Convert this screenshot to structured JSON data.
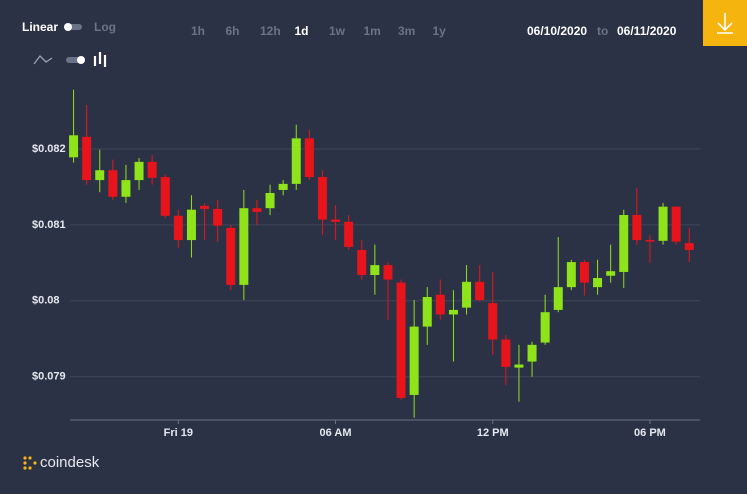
{
  "controls": {
    "scales": [
      "Linear",
      "Log"
    ],
    "active_scale": "Linear",
    "ranges": [
      "1h",
      "6h",
      "12h",
      "1d",
      "1w",
      "1m",
      "3m",
      "1y"
    ],
    "active_range": "1d",
    "date_from": "06/10/2020",
    "date_sep": "to",
    "date_to": "06/11/2020"
  },
  "brand": "coindesk",
  "chart_data": {
    "type": "candlestick",
    "categories": [
      null,
      null,
      null,
      null,
      null,
      null,
      null,
      null,
      "Fri 19",
      null,
      null,
      null,
      null,
      null,
      null,
      null,
      null,
      null,
      null,
      null,
      "06 AM",
      null,
      null,
      null,
      null,
      null,
      null,
      null,
      null,
      null,
      null,
      null,
      "12 PM",
      null,
      null,
      null,
      null,
      null,
      null,
      null,
      null,
      null,
      null,
      null,
      "06 PM",
      null,
      null,
      null
    ],
    "open": [
      0.08189,
      0.08216,
      0.08159,
      0.08172,
      0.08137,
      0.08159,
      0.08183,
      0.08163,
      0.08112,
      0.0808,
      0.08125,
      0.08121,
      0.08096,
      0.08021,
      0.08122,
      0.08122,
      0.08146,
      0.08154,
      0.08214,
      0.08163,
      0.08107,
      0.08104,
      0.08067,
      0.08034,
      0.08047,
      0.08024,
      0.07876,
      0.07966,
      0.08008,
      0.07982,
      0.07991,
      0.08025,
      0.07997,
      0.07949,
      0.07912,
      0.0792,
      0.07945,
      0.07988,
      0.08018,
      0.08051,
      0.08018,
      0.08033,
      0.08038,
      0.08113,
      0.0808,
      0.08079,
      0.08124,
      0.08076
    ],
    "high": [
      0.08278,
      0.08258,
      0.08199,
      0.08186,
      0.08179,
      0.08188,
      0.08192,
      0.08166,
      0.0812,
      0.08139,
      0.08128,
      0.08133,
      0.081,
      0.08146,
      0.08133,
      0.08153,
      0.08159,
      0.08232,
      0.08225,
      0.08172,
      0.08126,
      0.08113,
      0.0808,
      0.08074,
      0.08051,
      0.08028,
      0.08001,
      0.08018,
      0.08028,
      0.08014,
      0.08047,
      0.08047,
      0.08038,
      0.07955,
      0.07942,
      0.07946,
      0.08008,
      0.08084,
      0.08054,
      0.08054,
      0.08054,
      0.08074,
      0.0812,
      0.08149,
      0.08087,
      0.08129,
      0.08124,
      0.08096
    ],
    "low": [
      0.08182,
      0.08153,
      0.08143,
      0.08133,
      0.08129,
      0.08146,
      0.08153,
      0.08109,
      0.0807,
      0.08057,
      0.0808,
      0.08078,
      0.08014,
      0.08001,
      0.081,
      0.08113,
      0.08139,
      0.08146,
      0.08159,
      0.08087,
      0.0808,
      0.08067,
      0.08028,
      0.08008,
      0.07975,
      0.0787,
      0.07846,
      0.07942,
      0.07975,
      0.0792,
      0.07982,
      0.07999,
      0.07929,
      0.07889,
      0.07867,
      0.079,
      0.07942,
      0.07985,
      0.08014,
      0.08007,
      0.08008,
      0.08024,
      0.08017,
      0.08074,
      0.0805,
      0.08074,
      0.08074,
      0.08051
    ],
    "close": [
      0.08218,
      0.08159,
      0.08172,
      0.08137,
      0.08159,
      0.08183,
      0.08162,
      0.08112,
      0.0808,
      0.0812,
      0.08121,
      0.08099,
      0.08021,
      0.08122,
      0.08117,
      0.08142,
      0.08154,
      0.08214,
      0.08163,
      0.08107,
      0.08104,
      0.08071,
      0.08034,
      0.08047,
      0.08028,
      0.07872,
      0.07966,
      0.08005,
      0.07982,
      0.07988,
      0.08025,
      0.08001,
      0.07949,
      0.07913,
      0.07916,
      0.07942,
      0.07985,
      0.08018,
      0.08051,
      0.08024,
      0.0803,
      0.08039,
      0.08113,
      0.0808,
      0.08078,
      0.08124,
      0.08078,
      0.08067
    ],
    "up_color": "#8fe31a",
    "down_color": "#e8141c",
    "ylim": [
      0.07843,
      0.08304
    ],
    "yticks": [
      {
        "value": 0.079,
        "label": "$0.079"
      },
      {
        "value": 0.08,
        "label": "$0.08"
      },
      {
        "value": 0.081,
        "label": "$0.081"
      },
      {
        "value": 0.082,
        "label": "$0.082"
      }
    ],
    "grid": true
  }
}
